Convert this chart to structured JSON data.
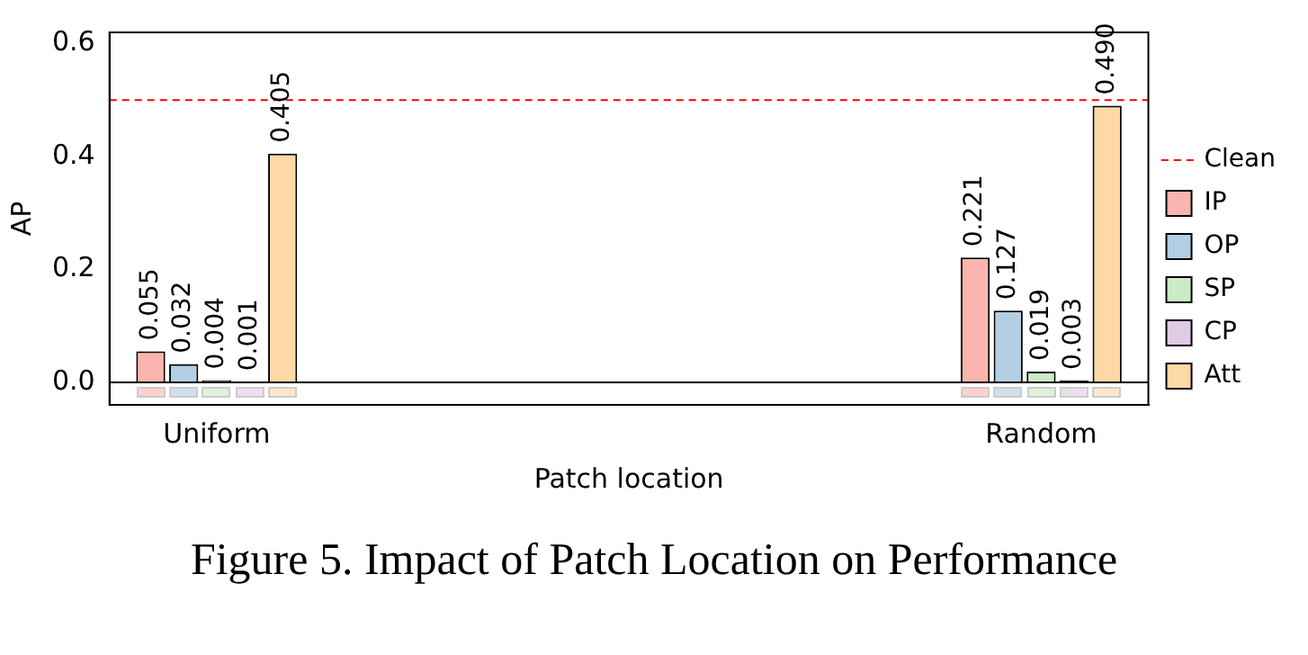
{
  "chart_data": {
    "type": "bar",
    "title": "Figure 5. Impact of Patch Location on Performance",
    "xlabel": "Patch location",
    "ylabel": "AP",
    "categories": [
      "Uniform",
      "Random"
    ],
    "series": [
      {
        "name": "IP",
        "color": "#fbb4ae",
        "values": [
          0.055,
          0.221
        ],
        "value_labels": [
          "0.055",
          "0.221"
        ]
      },
      {
        "name": "OP",
        "color": "#b3cde3",
        "values": [
          0.032,
          0.127
        ],
        "value_labels": [
          "0.032",
          "0.127"
        ]
      },
      {
        "name": "SP",
        "color": "#ccebc5",
        "values": [
          0.004,
          0.019
        ],
        "value_labels": [
          "0.004",
          "0.019"
        ]
      },
      {
        "name": "CP",
        "color": "#decbe4",
        "values": [
          0.001,
          0.003
        ],
        "value_labels": [
          "0.001",
          "0.003"
        ]
      },
      {
        "name": "Att",
        "color": "#fed9a6",
        "values": [
          0.405,
          0.49
        ],
        "value_labels": [
          "0.405",
          "0.490"
        ]
      }
    ],
    "ylim": [
      -0.04,
      0.62
    ],
    "yticks": [
      {
        "value": 0,
        "label": "0.0"
      },
      {
        "value": 0.2,
        "label": "0.2"
      },
      {
        "value": 0.4,
        "label": "0.4"
      },
      {
        "value": 0.6,
        "label": "0.6"
      }
    ],
    "ref_lines": [
      {
        "axis": "y",
        "value": 0.5,
        "label": "Clean",
        "color": "#ff0000",
        "line_style": "dashed"
      },
      {
        "axis": "y",
        "value": 0,
        "color": "#000000",
        "line_style": "solid"
      }
    ],
    "legend": "right",
    "grid": false
  }
}
